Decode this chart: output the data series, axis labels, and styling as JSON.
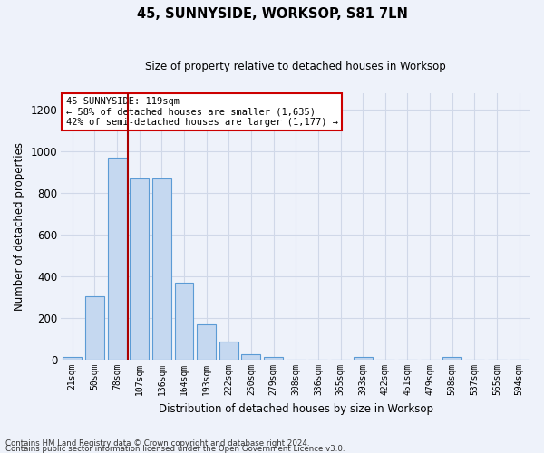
{
  "title": "45, SUNNYSIDE, WORKSOP, S81 7LN",
  "subtitle": "Size of property relative to detached houses in Worksop",
  "xlabel": "Distribution of detached houses by size in Worksop",
  "ylabel": "Number of detached properties",
  "bar_color": "#c5d8f0",
  "bar_edge_color": "#5b9bd5",
  "background_color": "#eef2fa",
  "categories": [
    "21sqm",
    "50sqm",
    "78sqm",
    "107sqm",
    "136sqm",
    "164sqm",
    "193sqm",
    "222sqm",
    "250sqm",
    "279sqm",
    "308sqm",
    "336sqm",
    "365sqm",
    "393sqm",
    "422sqm",
    "451sqm",
    "479sqm",
    "508sqm",
    "537sqm",
    "565sqm",
    "594sqm"
  ],
  "values": [
    13,
    305,
    968,
    868,
    868,
    370,
    170,
    88,
    27,
    13,
    0,
    0,
    0,
    10,
    0,
    0,
    0,
    13,
    0,
    0,
    0
  ],
  "ylim": [
    0,
    1280
  ],
  "yticks": [
    0,
    200,
    400,
    600,
    800,
    1000,
    1200
  ],
  "vline_x": 2.5,
  "vline_color": "#aa0000",
  "annotation_text": "45 SUNNYSIDE: 119sqm\n← 58% of detached houses are smaller (1,635)\n42% of semi-detached houses are larger (1,177) →",
  "annotation_box_color": "#ffffff",
  "annotation_box_edge": "#cc0000",
  "footnote1": "Contains HM Land Registry data © Crown copyright and database right 2024.",
  "footnote2": "Contains public sector information licensed under the Open Government Licence v3.0."
}
